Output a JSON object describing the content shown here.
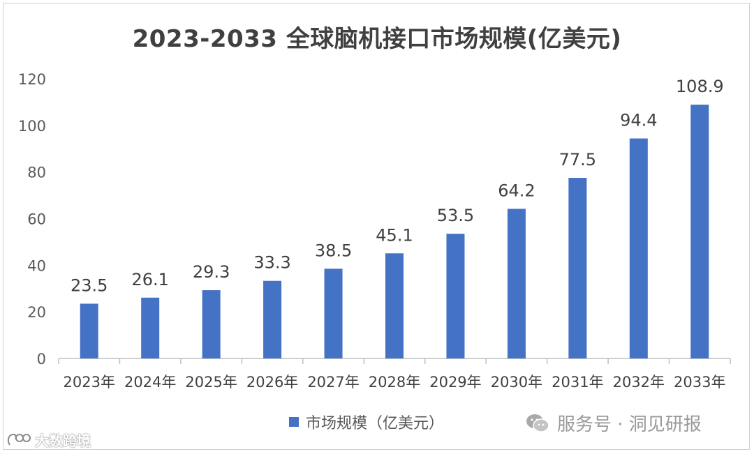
{
  "chart_data": {
    "type": "bar",
    "title": "2023-2033 全球脑机接口市场规模(亿美元)",
    "xlabel": "",
    "ylabel": "",
    "categories": [
      "2023年",
      "2024年",
      "2025年",
      "2026年",
      "2027年",
      "2028年",
      "2029年",
      "2030年",
      "2031年",
      "2032年",
      "2033年"
    ],
    "series": [
      {
        "name": "市场规模（亿美元）",
        "values": [
          23.5,
          26.1,
          29.3,
          33.3,
          38.5,
          45.1,
          53.5,
          64.2,
          77.5,
          94.4,
          108.9
        ]
      }
    ],
    "data_labels": [
      "23.5",
      "26.1",
      "29.3",
      "33.3",
      "38.5",
      "45.1",
      "53.5",
      "64.2",
      "77.5",
      "94.4",
      "108.9"
    ],
    "ylim": [
      0,
      120
    ],
    "yticks": [
      0,
      20,
      40,
      60,
      80,
      100,
      120
    ],
    "ytick_labels": [
      "0",
      "20",
      "40",
      "60",
      "80",
      "100",
      "120"
    ],
    "grid": false,
    "legend_position": "bottom",
    "bar_color": "#4472C4"
  },
  "footer": {
    "wechat_label": "服务号 · 洞见研报",
    "watermark_label": "大数跨境"
  }
}
